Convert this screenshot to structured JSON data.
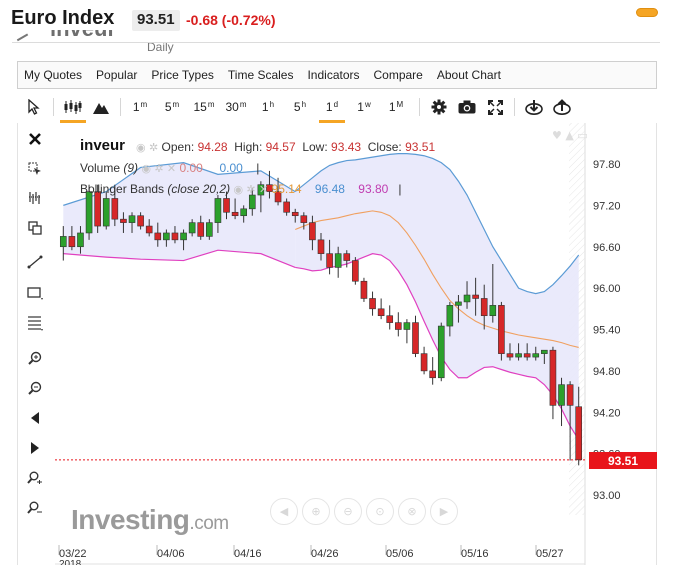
{
  "header": {
    "title": "Euro Index",
    "price": "93.51",
    "change": "-0.68 (-0.72%)",
    "ghost_symbol": "inveur",
    "ghost_period": "Daily",
    "accent": "#f5a524",
    "down_color": "#d91e1e"
  },
  "menu": [
    "My Quotes",
    "Popular",
    "Price Types",
    "Time Scales",
    "Indicators",
    "Compare",
    "About Chart"
  ],
  "toolbar": {
    "timeframes": [
      {
        "label": "1",
        "sup": "m"
      },
      {
        "label": "5",
        "sup": "m"
      },
      {
        "label": "15",
        "sup": "m"
      },
      {
        "label": "30",
        "sup": "m"
      },
      {
        "label": "1",
        "sup": "h"
      },
      {
        "label": "5",
        "sup": "h"
      },
      {
        "label": "1",
        "sup": "d"
      },
      {
        "label": "1",
        "sup": "w"
      },
      {
        "label": "1",
        "sup": "M"
      }
    ],
    "active_timeframe": "1d",
    "icons": [
      "cursor-icon",
      "candlestick-icon",
      "mountain-icon",
      "gear-icon",
      "camera-icon",
      "fullscreen-icon",
      "download-icon",
      "upload-icon"
    ]
  },
  "left_tools": [
    "close-icon",
    "cross-cursor-icon",
    "bars-tool-icon",
    "copy-icon",
    "trendline-icon",
    "rectangle-icon",
    "fibonacci-icon",
    "zoom-in-icon",
    "zoom-out-icon",
    "scroll-left-icon",
    "scroll-right-icon",
    "magnet-icon",
    "anchor-icon"
  ],
  "legend": {
    "symbol": "inveur",
    "open_label": "Open:",
    "open": "94.28",
    "high_label": "High:",
    "high": "94.57",
    "low_label": "Low:",
    "low": "93.43",
    "close_label": "Close:",
    "close": "93.51",
    "volume_label": "Volume",
    "volume_param": "(9)",
    "volume_val1": "0.00",
    "volume_val2": "0.00",
    "bb_label": "Bollinger Bands",
    "bb_param": "(close 20,2)",
    "bb_mid": "95.14",
    "bb_upper": "96.48",
    "bb_lower": "93.80"
  },
  "last_price_tag": "93.51",
  "watermark": {
    "brand": "Investing",
    "suffix": ".com"
  },
  "chart_data": {
    "type": "candlestick",
    "yticks": [
      "97.80",
      "97.20",
      "96.60",
      "96.00",
      "95.40",
      "94.80",
      "94.20",
      "93.60",
      "93.00"
    ],
    "ylim": [
      92.7,
      98.1
    ],
    "xtick_labels": [
      "03/22",
      "04/06",
      "04/16",
      "04/26",
      "05/06",
      "05/16",
      "05/27"
    ],
    "xtick_year": "2018",
    "colors": {
      "up": "#2ca02c",
      "down": "#d62728",
      "upper_band": "#5b9bd5",
      "lower_band": "#e040c0",
      "middle_band": "#f0a060",
      "band_fill": "#e8e8fb"
    },
    "candles": [
      [
        96.6,
        96.9,
        96.4,
        96.75
      ],
      [
        96.75,
        96.9,
        96.55,
        96.6
      ],
      [
        96.6,
        96.9,
        96.5,
        96.8
      ],
      [
        96.8,
        97.5,
        96.7,
        97.4
      ],
      [
        97.4,
        97.5,
        96.8,
        96.9
      ],
      [
        96.9,
        97.4,
        96.85,
        97.3
      ],
      [
        97.3,
        97.5,
        96.9,
        97.0
      ],
      [
        97.0,
        97.1,
        96.8,
        96.95
      ],
      [
        96.95,
        97.1,
        96.8,
        97.05
      ],
      [
        97.05,
        97.1,
        96.85,
        96.9
      ],
      [
        96.9,
        97.0,
        96.75,
        96.8
      ],
      [
        96.8,
        96.95,
        96.6,
        96.7
      ],
      [
        96.7,
        96.85,
        96.6,
        96.8
      ],
      [
        96.8,
        96.9,
        96.65,
        96.7
      ],
      [
        96.7,
        96.85,
        96.55,
        96.8
      ],
      [
        96.8,
        97.0,
        96.75,
        96.95
      ],
      [
        96.95,
        97.05,
        96.7,
        96.75
      ],
      [
        96.75,
        97.0,
        96.7,
        96.95
      ],
      [
        96.95,
        97.35,
        96.8,
        97.3
      ],
      [
        97.3,
        97.4,
        97.0,
        97.1
      ],
      [
        97.1,
        97.3,
        97.0,
        97.05
      ],
      [
        97.05,
        97.2,
        96.95,
        97.15
      ],
      [
        97.15,
        97.45,
        97.05,
        97.35
      ],
      [
        97.35,
        97.55,
        97.1,
        97.5
      ],
      [
        97.5,
        97.7,
        97.3,
        97.4
      ],
      [
        97.4,
        97.6,
        97.2,
        97.25
      ],
      [
        97.25,
        97.3,
        97.05,
        97.1
      ],
      [
        97.1,
        97.15,
        96.95,
        97.05
      ],
      [
        97.05,
        97.1,
        96.85,
        96.95
      ],
      [
        96.95,
        97.05,
        96.55,
        96.7
      ],
      [
        96.7,
        96.8,
        96.4,
        96.5
      ],
      [
        96.5,
        96.7,
        96.2,
        96.3
      ],
      [
        96.3,
        96.6,
        96.15,
        96.5
      ],
      [
        96.5,
        96.55,
        96.3,
        96.4
      ],
      [
        96.4,
        96.45,
        96.05,
        96.1
      ],
      [
        96.1,
        96.15,
        95.8,
        95.85
      ],
      [
        95.85,
        95.95,
        95.6,
        95.7
      ],
      [
        95.7,
        95.85,
        95.55,
        95.6
      ],
      [
        95.6,
        95.75,
        95.4,
        95.5
      ],
      [
        95.5,
        95.65,
        95.3,
        95.4
      ],
      [
        95.4,
        95.55,
        95.2,
        95.5
      ],
      [
        95.5,
        95.6,
        95.0,
        95.05
      ],
      [
        95.05,
        95.15,
        94.75,
        94.8
      ],
      [
        94.8,
        95.0,
        94.6,
        94.7
      ],
      [
        94.7,
        95.5,
        94.65,
        95.45
      ],
      [
        95.45,
        95.8,
        95.3,
        95.75
      ],
      [
        95.75,
        95.9,
        95.5,
        95.8
      ],
      [
        95.8,
        96.1,
        95.7,
        95.9
      ],
      [
        95.9,
        96.15,
        95.6,
        95.85
      ],
      [
        95.85,
        96.05,
        95.4,
        95.6
      ],
      [
        95.6,
        96.35,
        95.5,
        95.75
      ],
      [
        95.75,
        95.8,
        94.95,
        95.05
      ],
      [
        95.05,
        95.2,
        94.95,
        95.0
      ],
      [
        95.0,
        95.2,
        94.95,
        95.05
      ],
      [
        95.05,
        95.2,
        94.95,
        95.0
      ],
      [
        95.0,
        95.15,
        94.95,
        95.05
      ],
      [
        95.05,
        95.1,
        94.9,
        95.1
      ],
      [
        95.1,
        95.15,
        94.1,
        94.3
      ],
      [
        94.3,
        94.7,
        94.0,
        94.6
      ],
      [
        94.6,
        94.65,
        93.5,
        94.3
      ],
      [
        94.28,
        94.57,
        93.43,
        93.51
      ]
    ],
    "upper_band": [
      97.4,
      97.5,
      97.6,
      97.7,
      97.78,
      97.82,
      97.85,
      97.86,
      97.88,
      97.9,
      97.92,
      97.94,
      97.95,
      97.95,
      97.94,
      97.92,
      97.88,
      97.82,
      97.72,
      97.55,
      97.35,
      97.1,
      96.85,
      96.6,
      96.4,
      96.2,
      96.0,
      95.95,
      95.92,
      95.95,
      96.05,
      96.18,
      96.32,
      96.48
    ],
    "lower_band": [
      96.3,
      96.28,
      96.25,
      96.26,
      96.3,
      96.32,
      96.35,
      96.4,
      96.45,
      96.5,
      96.48,
      96.4,
      96.25,
      96.05,
      95.8,
      95.52,
      95.25,
      95.0,
      94.82,
      94.7,
      94.7,
      94.78,
      94.85,
      94.86,
      94.82,
      94.78,
      94.75,
      94.72,
      94.7,
      94.6,
      94.45,
      94.25,
      94.0,
      93.8
    ],
    "middle_band": [
      96.85,
      96.9,
      96.95,
      96.98,
      97.0,
      97.02,
      97.05,
      97.08,
      97.1,
      97.12,
      97.1,
      97.05,
      96.95,
      96.8,
      96.62,
      96.42,
      96.2,
      96.0,
      95.82,
      95.7,
      95.6,
      95.52,
      95.46,
      95.42,
      95.38,
      95.35,
      95.32,
      95.3,
      95.28,
      95.26,
      95.24,
      95.21,
      95.17,
      95.14
    ]
  }
}
